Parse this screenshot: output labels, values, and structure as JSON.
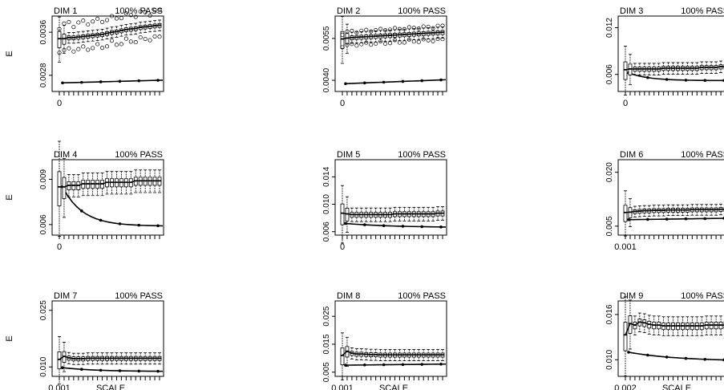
{
  "chart_data": [
    {
      "type": "box",
      "title": "DIM 1",
      "status": "100% PASS",
      "ylabel": "E",
      "xlabel": "",
      "xticks": [
        "0"
      ],
      "yticks": [
        "0.0028",
        "0.0036"
      ],
      "ylim": [
        0.0025,
        0.0039
      ],
      "median": [
        0.00348,
        0.00348,
        0.0035,
        0.0035,
        0.00351,
        0.00352,
        0.00353,
        0.00354,
        0.00355,
        0.00356,
        0.00358,
        0.0036,
        0.00361,
        0.00363,
        0.00365,
        0.00366,
        0.00367,
        0.00369,
        0.0037,
        0.00371,
        0.00372,
        0.00373
      ],
      "spread": 4e-05,
      "outliers_upper": 0.0003,
      "outliers_lower": -0.00026,
      "line_start": 0.00266,
      "line_end": 0.00271,
      "line_decay": 0
    },
    {
      "type": "box",
      "title": "DIM 2",
      "status": "100% PASS",
      "ylabel": "",
      "xlabel": "",
      "xticks": [
        "0"
      ],
      "yticks": [
        "0.0040",
        "0.0055"
      ],
      "ylim": [
        0.0036,
        0.0063
      ],
      "median": [
        0.00548,
        0.00551,
        0.00553,
        0.00554,
        0.00555,
        0.00556,
        0.00557,
        0.00558,
        0.00559,
        0.0056,
        0.00561,
        0.00562,
        0.00563,
        0.00564,
        0.00565,
        0.00566,
        0.00567,
        0.00568,
        0.00569,
        0.0057,
        0.00571,
        0.00572
      ],
      "spread": 8e-05,
      "outliers_upper": 0.00025,
      "outliers_lower": -0.0003,
      "line_start": 0.00388,
      "line_end": 0.00402,
      "line_decay": 0
    },
    {
      "type": "box",
      "title": "DIM 3",
      "status": "100% PASS",
      "ylabel": "",
      "xlabel": "",
      "xticks": [
        "0"
      ],
      "yticks": [
        "0.006",
        "0.012"
      ],
      "ylim": [
        0.0038,
        0.0135
      ],
      "median": [
        0.0066,
        0.0067,
        0.0067,
        0.0067,
        0.0067,
        0.0067,
        0.0067,
        0.0067,
        0.0068,
        0.0068,
        0.0068,
        0.0068,
        0.0068,
        0.0068,
        0.0068,
        0.0068,
        0.0069,
        0.0069,
        0.0069,
        0.0069,
        0.007,
        0.007
      ],
      "spread": 0.0003,
      "outliers_upper": 0,
      "outliers_lower": 0,
      "line_start": 0.0062,
      "line_end": 0.0052,
      "line_decay": 5
    },
    {
      "type": "box",
      "title": "DIM 4",
      "status": "100% PASS",
      "ylabel": "E",
      "xlabel": "",
      "xticks": [
        "0"
      ],
      "yticks": [
        "0.006",
        "0.009"
      ],
      "ylim": [
        0.0053,
        0.0103
      ],
      "median": [
        0.0085,
        0.0085,
        0.0086,
        0.0086,
        0.0086,
        0.0087,
        0.0087,
        0.0087,
        0.0087,
        0.0087,
        0.0088,
        0.0088,
        0.0088,
        0.0088,
        0.0088,
        0.0088,
        0.0089,
        0.0089,
        0.0089,
        0.0089,
        0.0089,
        0.0089
      ],
      "spread": 0.0003,
      "outliers_upper": 0,
      "outliers_lower": 0,
      "line_start": 0.0085,
      "line_end": 0.0059,
      "line_decay": 5
    },
    {
      "type": "box",
      "title": "DIM 5",
      "status": "100% PASS",
      "ylabel": "",
      "xlabel": "",
      "xticks": [
        "0"
      ],
      "yticks": [
        "0.006",
        "0.010",
        "0.014"
      ],
      "ylim": [
        0.0055,
        0.0165
      ],
      "median": [
        0.0087,
        0.0086,
        0.0085,
        0.0085,
        0.0085,
        0.0085,
        0.0085,
        0.0085,
        0.0085,
        0.0085,
        0.0085,
        0.0086,
        0.0086,
        0.0086,
        0.0086,
        0.0086,
        0.0086,
        0.0086,
        0.0086,
        0.0086,
        0.0087,
        0.0087
      ],
      "spread": 0.0004,
      "outliers_upper": 0,
      "outliers_lower": 0,
      "line_start": 0.0072,
      "line_end": 0.0066,
      "line_decay": 2
    },
    {
      "type": "box",
      "title": "DIM 6",
      "status": "100% PASS",
      "ylabel": "",
      "xlabel": "",
      "xticks": [
        "0.001"
      ],
      "yticks": [
        "0.005",
        "0.020"
      ],
      "ylim": [
        0.0025,
        0.0235
      ],
      "median": [
        0.0088,
        0.0089,
        0.0091,
        0.0092,
        0.0093,
        0.0093,
        0.0094,
        0.0094,
        0.0094,
        0.0095,
        0.0095,
        0.0095,
        0.0095,
        0.0095,
        0.0096,
        0.0096,
        0.0096,
        0.0096,
        0.0096,
        0.0096,
        0.0097,
        0.0097
      ],
      "spread": 0.0006,
      "outliers_upper": 0,
      "outliers_lower": 0,
      "line_start": 0.0068,
      "line_end": 0.0072,
      "line_decay": 0
    },
    {
      "type": "box",
      "title": "DIM 7",
      "status": "100% PASS",
      "ylabel": "E",
      "xlabel": "SCALE",
      "xticks": [
        "0.001"
      ],
      "yticks": [
        "0.010",
        "0.025"
      ],
      "ylim": [
        0.0075,
        0.0275
      ],
      "median": [
        0.012,
        0.0128,
        0.0124,
        0.0122,
        0.0122,
        0.0122,
        0.0123,
        0.0123,
        0.0123,
        0.0123,
        0.0123,
        0.0123,
        0.0123,
        0.0123,
        0.0123,
        0.0123,
        0.0123,
        0.0123,
        0.0123,
        0.0123,
        0.0123,
        0.0123
      ],
      "spread": 0.0006,
      "outliers_upper": 0,
      "outliers_lower": 0,
      "line_start": 0.0098,
      "line_end": 0.0088,
      "line_decay": 3
    },
    {
      "type": "box",
      "title": "DIM 8",
      "status": "100% PASS",
      "ylabel": "",
      "xlabel": "SCALE",
      "xticks": [
        "0.001"
      ],
      "yticks": [
        "0.005",
        "0.015",
        "0.025"
      ],
      "ylim": [
        0.0035,
        0.0305
      ],
      "median": [
        0.011,
        0.0125,
        0.0118,
        0.0115,
        0.0115,
        0.0114,
        0.0113,
        0.0113,
        0.0112,
        0.0112,
        0.0112,
        0.0112,
        0.0112,
        0.0112,
        0.0112,
        0.0112,
        0.0112,
        0.0112,
        0.0112,
        0.0112,
        0.0112,
        0.0112
      ],
      "spread": 0.0008,
      "outliers_upper": 0,
      "outliers_lower": 0,
      "line_start": 0.0075,
      "line_end": 0.0079,
      "line_decay": 0
    },
    {
      "type": "box",
      "title": "DIM 9",
      "status": "100% PASS",
      "ylabel": "",
      "xlabel": "SCALE",
      "xticks": [
        "0.002"
      ],
      "yticks": [
        "0.010",
        "0.016"
      ],
      "ylim": [
        0.0078,
        0.0178
      ],
      "median": [
        0.0133,
        0.0148,
        0.0146,
        0.015,
        0.0149,
        0.0147,
        0.0146,
        0.0146,
        0.0145,
        0.0145,
        0.0145,
        0.0145,
        0.0145,
        0.0145,
        0.0145,
        0.0145,
        0.0145,
        0.0146,
        0.0146,
        0.0146,
        0.0146,
        0.0146
      ],
      "spread": 0.0005,
      "outliers_upper": 0,
      "outliers_lower": 0,
      "line_start": 0.011,
      "line_end": 0.0098,
      "line_decay": 2
    }
  ]
}
